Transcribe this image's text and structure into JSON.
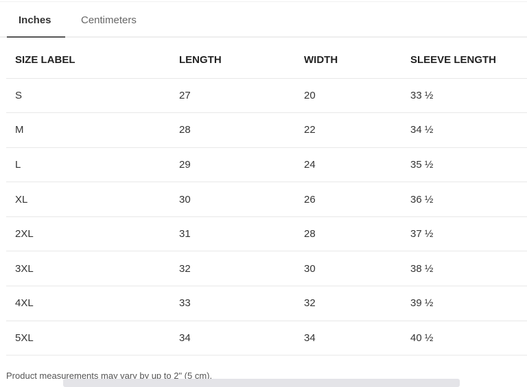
{
  "tabs": [
    {
      "label": "Inches",
      "active": true
    },
    {
      "label": "Centimeters",
      "active": false
    }
  ],
  "table": {
    "headers": [
      "SIZE LABEL",
      "LENGTH",
      "WIDTH",
      "SLEEVE LENGTH"
    ],
    "rows": [
      [
        "S",
        "27",
        "20",
        "33 ½"
      ],
      [
        "M",
        "28",
        "22",
        "34 ½"
      ],
      [
        "L",
        "29",
        "24",
        "35 ½"
      ],
      [
        "XL",
        "30",
        "26",
        "36 ½"
      ],
      [
        "2XL",
        "31",
        "28",
        "37 ½"
      ],
      [
        "3XL",
        "32",
        "30",
        "38 ½"
      ],
      [
        "4XL",
        "33",
        "32",
        "39 ½"
      ],
      [
        "5XL",
        "34",
        "34",
        "40 ½"
      ]
    ]
  },
  "note": "Product measurements may vary by up to 2\" (5 cm)."
}
